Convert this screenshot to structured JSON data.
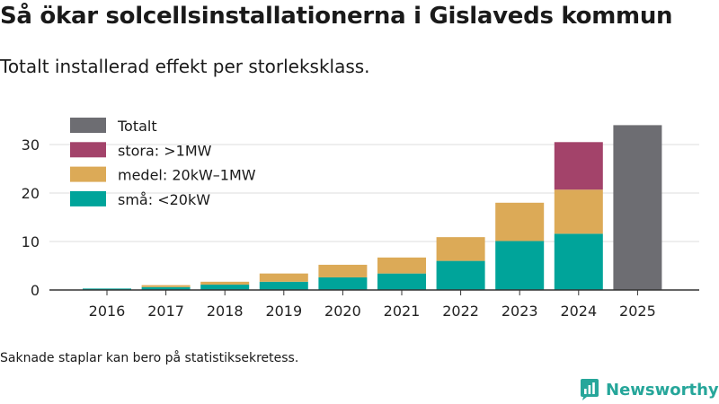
{
  "title": "Så ökar solcellsinstallationerna i Gislaveds kommun",
  "subtitle": "Totalt installerad effekt per storleksklass.",
  "note": "Saknade staplar kan bero på statistiksekretess.",
  "brand": "Newsworthy",
  "colors": {
    "total": "#6d6d72",
    "stora": "#a3436a",
    "medel": "#dcaa57",
    "sma": "#00a49a",
    "grid": "#dcdcdc",
    "axis": "#333333"
  },
  "chart_data": {
    "type": "bar",
    "stacked": true,
    "categories": [
      "2016",
      "2017",
      "2018",
      "2019",
      "2020",
      "2021",
      "2022",
      "2023",
      "2024",
      "2025"
    ],
    "series": [
      {
        "key": "sma",
        "name": "små: <20kW",
        "values": [
          0.3,
          0.6,
          1.1,
          1.7,
          2.6,
          3.4,
          6.0,
          10.1,
          11.6,
          null
        ]
      },
      {
        "key": "medel",
        "name": "medel: 20kW–1MW",
        "values": [
          0.0,
          0.4,
          0.6,
          1.7,
          2.6,
          3.3,
          4.9,
          7.9,
          9.1,
          null
        ]
      },
      {
        "key": "stora",
        "name": "stora: >1MW",
        "values": [
          null,
          null,
          null,
          null,
          null,
          null,
          null,
          null,
          9.8,
          null
        ]
      },
      {
        "key": "total",
        "name": "Totalt",
        "values": [
          null,
          null,
          null,
          null,
          null,
          null,
          null,
          null,
          null,
          34.0
        ]
      }
    ],
    "legend_order": [
      "total",
      "stora",
      "medel",
      "sma"
    ],
    "yticks": [
      0,
      10,
      20,
      30
    ],
    "ylim": [
      0,
      34.5
    ],
    "title": "Så ökar solcellsinstallationerna i Gislaveds kommun",
    "xlabel": "",
    "ylabel": "",
    "legend_position": "top-left"
  }
}
